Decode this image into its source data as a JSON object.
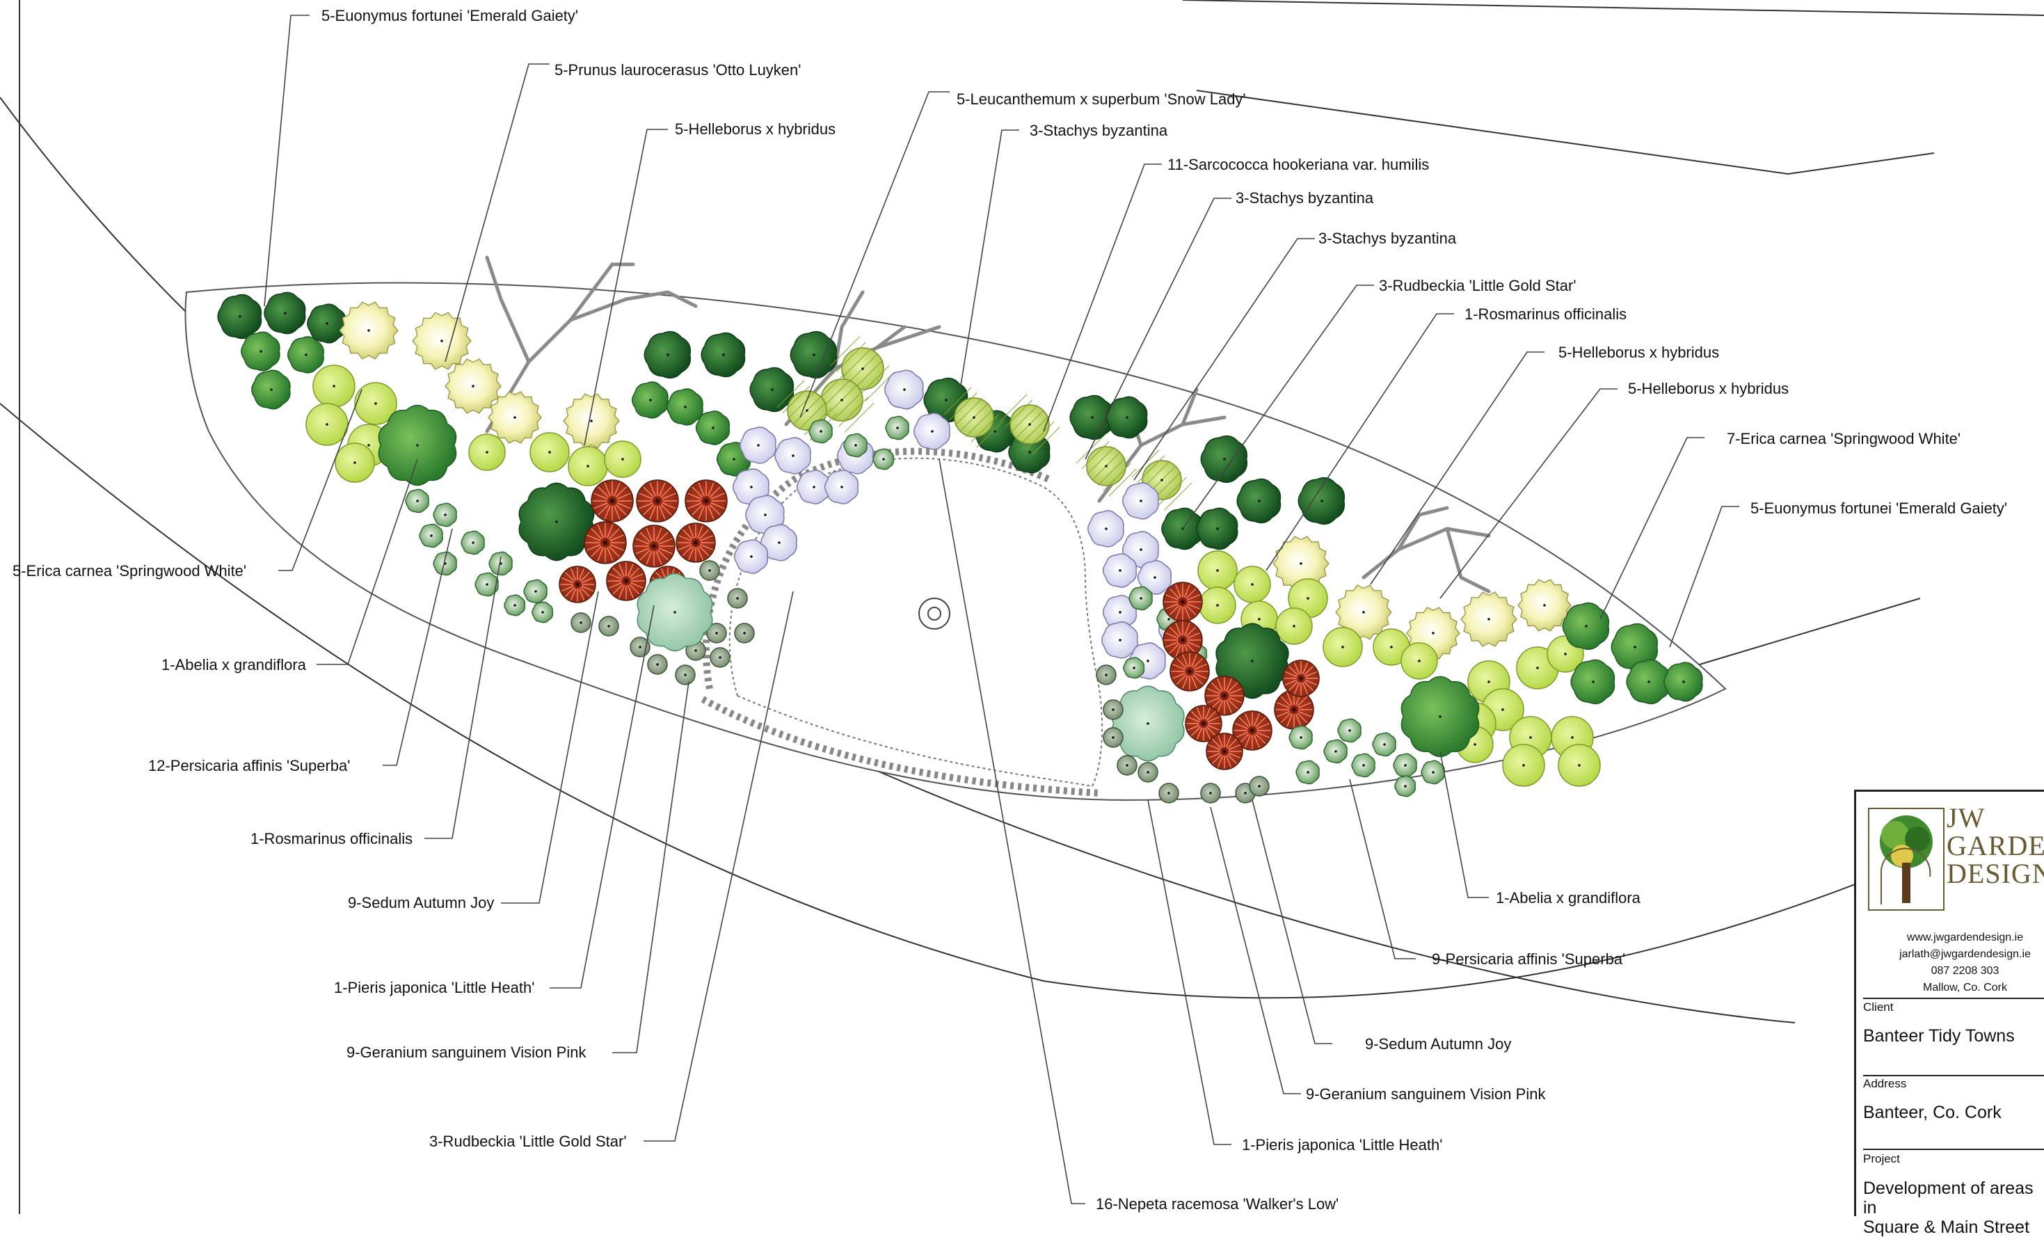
{
  "labels": {
    "l1": "5-Euonymus fortunei 'Emerald Gaiety'",
    "l2": "5-Prunus laurocerasus 'Otto Luyken'",
    "l3": "5-Helleborus x hybridus",
    "l4": "5-Leucanthemum x superbum 'Snow Lady'",
    "l5": "3-Stachys byzantina",
    "l6": "11-Sarcococca hookeriana var. humilis",
    "l7": "3-Stachys byzantina",
    "l8": "3-Stachys byzantina",
    "l9": "3-Rudbeckia 'Little Gold Star'",
    "l10": "1-Rosmarinus officinalis",
    "l11": "5-Helleborus x hybridus",
    "l12": "5-Helleborus x hybridus",
    "l13": "7-Erica carnea 'Springwood White'",
    "l14": "5-Euonymus fortunei 'Emerald Gaiety'",
    "l15": "5-Erica carnea 'Springwood White'",
    "l16": "1-Abelia x grandiflora",
    "l17": "12-Persicaria affinis 'Superba'",
    "l18": "1-Rosmarinus officinalis",
    "l19": "9-Sedum Autumn Joy",
    "l20": "1-Pieris japonica 'Little Heath'",
    "l21": "9-Geranium sanguinem Vision Pink",
    "l22": "3-Rudbeckia 'Little Gold Star'",
    "l23": "16-Nepeta racemosa 'Walker's Low'",
    "l24": "1-Abelia x grandiflora",
    "l25": "9-Persicaria affinis 'Superba'",
    "l26": "9-Sedum Autumn Joy",
    "l27": "9-Geranium sanguinem Vision Pink",
    "l28": "1-Pieris japonica 'Little Heath'"
  },
  "title_block": {
    "brand_line1": "JW",
    "brand_line2": "GARDEN",
    "brand_line3": "DESIGN",
    "website": "www.jwgardendesign.ie",
    "email": "jarlath@jwgardendesign.ie",
    "phone": "087 2208 303",
    "location": "Mallow, Co. Cork",
    "client_label": "Client",
    "client_value": "Banteer Tidy Towns",
    "address_label": "Address",
    "address_value": "Banteer, Co. Cork",
    "project_label": "Project",
    "project_value_line1": "Development of areas in",
    "project_value_line2": "Square & Main Street"
  },
  "colors": {
    "dark_green": "#1f6b2e",
    "mid_green": "#3f9a3c",
    "lime": "#cfe86a",
    "pale_yellow": "#f4f3b8",
    "red": "#c4321d",
    "lavender": "#dcdcf2",
    "sage": "#a9d4b8",
    "mauve": "#8aa084",
    "grey_line": "#555555",
    "brand": "#6a5a32"
  }
}
